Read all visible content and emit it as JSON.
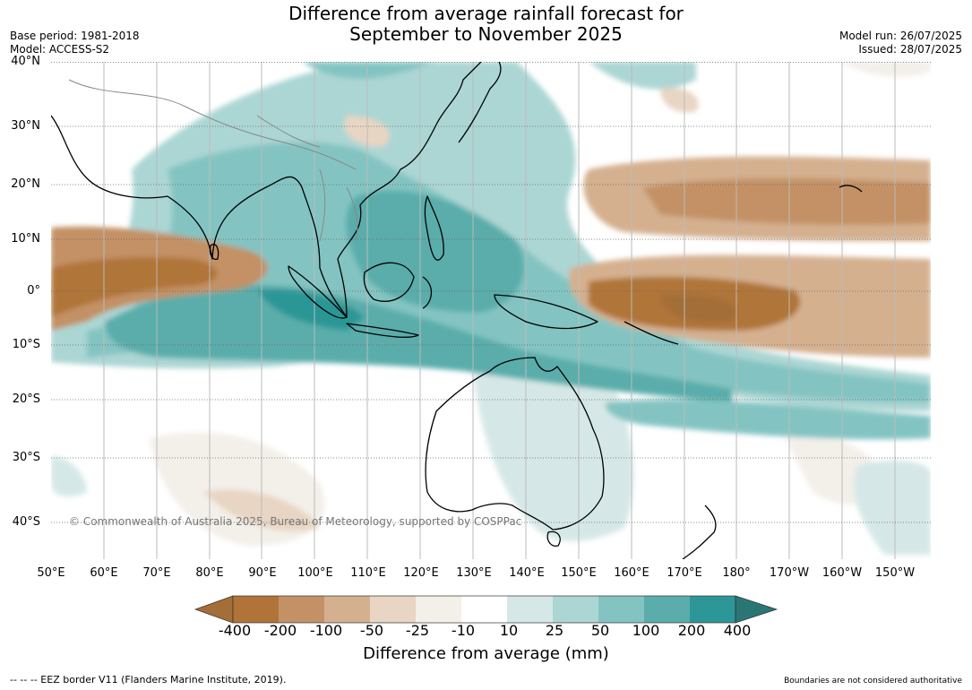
{
  "title": {
    "line1": "Difference from average rainfall forecast for",
    "line2": "September to November 2025"
  },
  "meta": {
    "base_period": "Base period: 1981-2018",
    "model": "Model: ACCESS-S2",
    "model_run": "Model run: 26/07/2025",
    "issued": "Issued: 28/07/2025"
  },
  "map": {
    "lat_labels": [
      "40°N",
      "30°N",
      "20°N",
      "10°N",
      "0°",
      "10°S",
      "20°S",
      "30°S",
      "40°S"
    ],
    "lon_labels": [
      "50°E",
      "60°E",
      "70°E",
      "80°E",
      "90°E",
      "100°E",
      "110°E",
      "120°E",
      "130°E",
      "140°E",
      "150°E",
      "160°E",
      "170°E",
      "180°",
      "170°W",
      "160°W",
      "150°W"
    ],
    "copyright": "© Commonwealth of Australia 2025, Bureau of Meteorology, supported by COSPPac"
  },
  "colorbar": {
    "ticks": [
      "-400",
      "-200",
      "-100",
      "-50",
      "-25",
      "-10",
      "10",
      "25",
      "50",
      "100",
      "200",
      "400"
    ],
    "colors": [
      "#a46e38",
      "#b07438",
      "#c39165",
      "#d4b08f",
      "#e8d5c3",
      "#f3efe9",
      "#ffffff",
      "#d5e8e7",
      "#acd6d4",
      "#83c4c2",
      "#5aadab",
      "#2c9796",
      "#2a7677"
    ],
    "label": "Difference from average (mm)"
  },
  "footer": {
    "left": "--  --  -- EEZ border V11 (Flanders Marine Institute, 2019).",
    "right": "Boundaries are not considered authoritative"
  }
}
